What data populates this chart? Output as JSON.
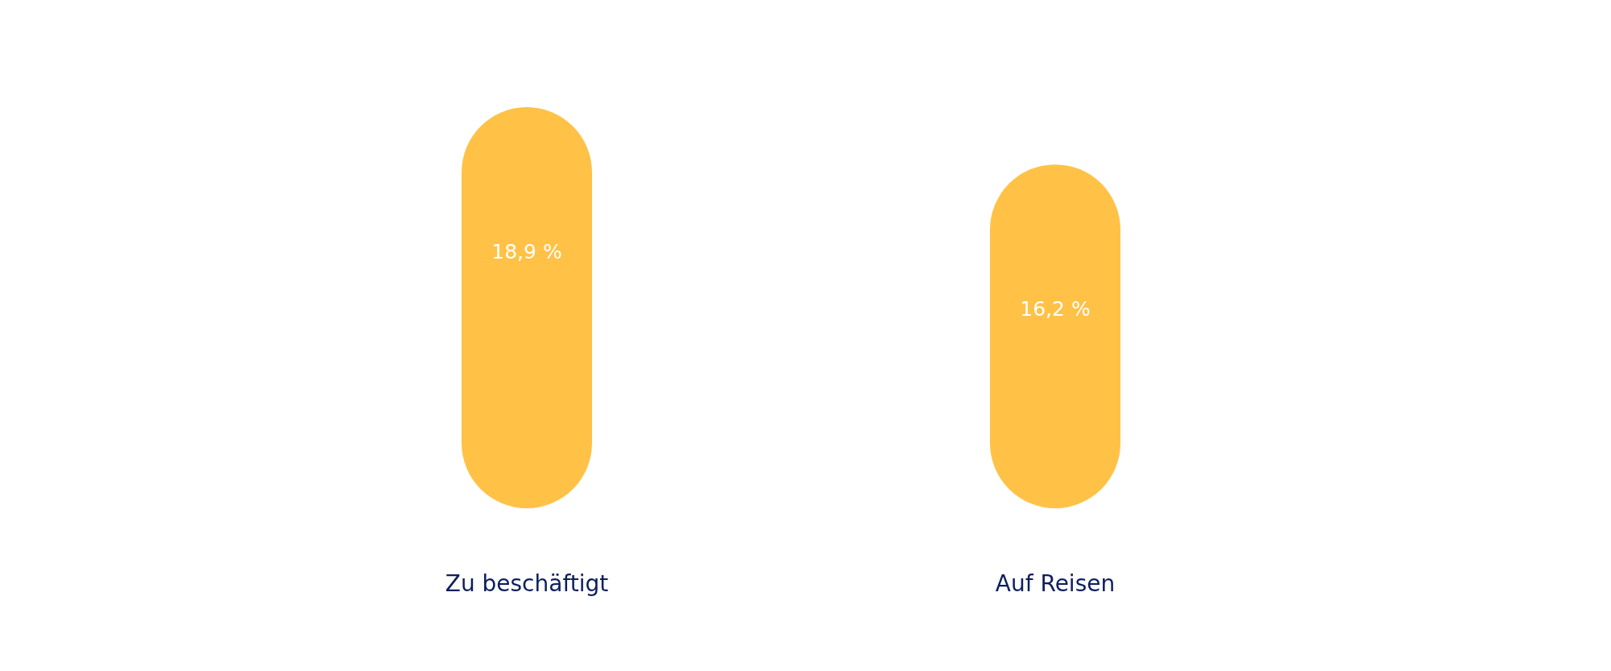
{
  "chart_data": {
    "type": "bar",
    "categories": [
      "Zu beschäftigt",
      "Auf Reisen"
    ],
    "values": [
      18.9,
      16.2
    ],
    "value_labels": [
      "18,9 %",
      "16,2 %"
    ],
    "color": "#ffc247",
    "grid": false
  }
}
